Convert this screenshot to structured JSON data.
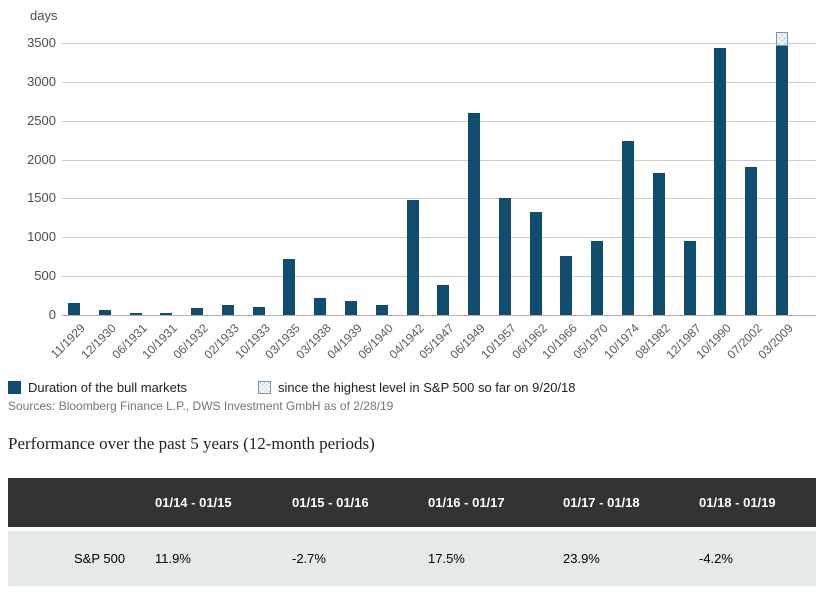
{
  "chart_data": {
    "type": "bar",
    "title": "Duration of the bull markets",
    "unit_label": "days",
    "xlabel": "",
    "ylabel": "days",
    "ylim": [
      0,
      3500
    ],
    "yticks": [
      0,
      500,
      1000,
      1500,
      2000,
      2500,
      3000,
      3500
    ],
    "grid": true,
    "legend_position": "bottom",
    "categories": [
      "11/1929",
      "12/1930",
      "06/1931",
      "10/1931",
      "06/1932",
      "02/1933",
      "10/1933",
      "03/1935",
      "03/1938",
      "04/1939",
      "06/1940",
      "04/1942",
      "05/1947",
      "06/1949",
      "10/1957",
      "06/1962",
      "10/1966",
      "05/1970",
      "10/1974",
      "08/1982",
      "12/1987",
      "10/1990",
      "07/2002",
      "03/2009"
    ],
    "series": [
      {
        "name": "Duration of the bull markets",
        "style": "solid",
        "values": [
          150,
          65,
          25,
          30,
          95,
          135,
          105,
          715,
          220,
          180,
          130,
          1480,
          380,
          2600,
          1510,
          1330,
          765,
          950,
          2240,
          1830,
          950,
          3440,
          1900,
          3460
        ]
      },
      {
        "name": "since the highest level in S&P 500 so far on 9/20/18",
        "style": "hatched",
        "values": [
          0,
          0,
          0,
          0,
          0,
          0,
          0,
          0,
          0,
          0,
          0,
          0,
          0,
          0,
          0,
          0,
          0,
          0,
          0,
          0,
          0,
          0,
          0,
          185
        ]
      }
    ],
    "colors": {
      "bar": "#104d6e",
      "hatch_fill": "#ccdbe4",
      "hatch_border": "#7897a9",
      "gridline": "#cdcdcd"
    }
  },
  "legend": {
    "items": [
      {
        "label": "Duration of the bull markets",
        "swatch": "solid"
      },
      {
        "label": "since the highest level in S&P 500 so far on 9/20/18",
        "swatch": "hatched"
      }
    ]
  },
  "sources_note": "Sources: Bloomberg Finance L.P., DWS Investment GmbH as of 2/28/19",
  "performance": {
    "title": "Performance over the past 5 years (12-month periods)",
    "table": {
      "columns": [
        "01/14 - 01/15",
        "01/15 - 01/16",
        "01/16 - 01/17",
        "01/17 - 01/18",
        "01/18 - 01/19"
      ],
      "rows": [
        {
          "label": "S&P 500",
          "values": [
            "11.9%",
            "-2.7%",
            "17.5%",
            "23.9%",
            "-4.2%"
          ]
        }
      ]
    }
  }
}
